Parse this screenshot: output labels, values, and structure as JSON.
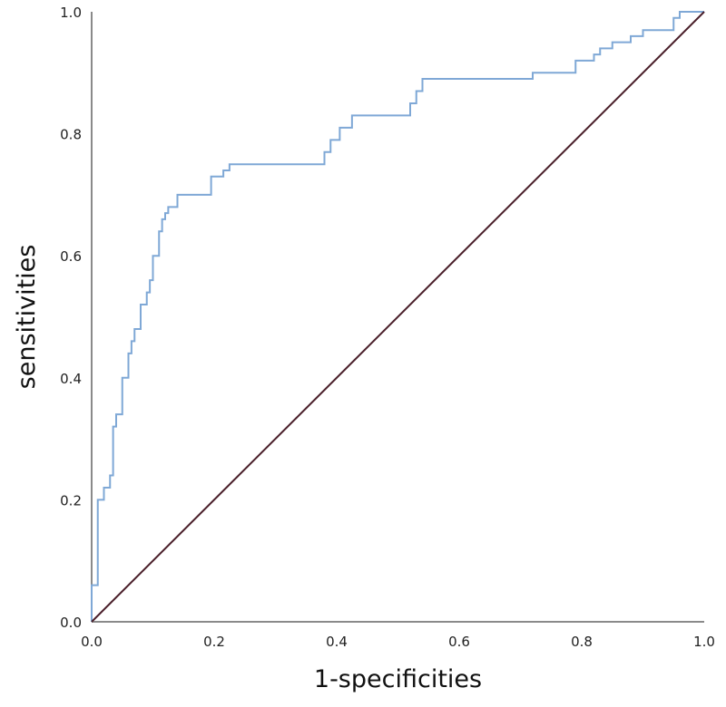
{
  "chart_data": {
    "type": "line",
    "title": "",
    "xlabel": "1-specificities",
    "ylabel": "sensitivities",
    "xlim": [
      0,
      1
    ],
    "ylim": [
      0,
      1
    ],
    "grid": false,
    "x_ticks": [
      "0.0",
      "0.2",
      "0.4",
      "0.6",
      "0.8",
      "1.0"
    ],
    "y_ticks": [
      "0.0",
      "0.2",
      "0.4",
      "0.6",
      "0.8",
      "1.0"
    ],
    "colors": {
      "roc": "#7fa8d6",
      "reference": "#4a1f2a",
      "axis": "#8a8a8a"
    },
    "series": [
      {
        "style": "step",
        "x": [
          0,
          0,
          0.01,
          0.01,
          0.02,
          0.02,
          0.03,
          0.03,
          0.035,
          0.035,
          0.04,
          0.04,
          0.05,
          0.05,
          0.06,
          0.06,
          0.065,
          0.065,
          0.07,
          0.07,
          0.08,
          0.08,
          0.09,
          0.09,
          0.095,
          0.095,
          0.1,
          0.1,
          0.11,
          0.11,
          0.115,
          0.115,
          0.12,
          0.12,
          0.125,
          0.125,
          0.14,
          0.14,
          0.195,
          0.195,
          0.215,
          0.215,
          0.225,
          0.225,
          0.38,
          0.38,
          0.39,
          0.39,
          0.405,
          0.405,
          0.425,
          0.425,
          0.52,
          0.52,
          0.53,
          0.53,
          0.54,
          0.54,
          0.72,
          0.72,
          0.79,
          0.79,
          0.82,
          0.82,
          0.83,
          0.83,
          0.85,
          0.85,
          0.88,
          0.88,
          0.9,
          0.9,
          0.95,
          0.95,
          0.96,
          0.96,
          1.0
        ],
        "y": [
          0,
          0.06,
          0.06,
          0.2,
          0.2,
          0.22,
          0.22,
          0.24,
          0.24,
          0.32,
          0.32,
          0.34,
          0.34,
          0.4,
          0.4,
          0.44,
          0.44,
          0.46,
          0.46,
          0.48,
          0.48,
          0.52,
          0.52,
          0.54,
          0.54,
          0.56,
          0.56,
          0.6,
          0.6,
          0.64,
          0.64,
          0.66,
          0.66,
          0.67,
          0.67,
          0.68,
          0.68,
          0.7,
          0.7,
          0.73,
          0.73,
          0.74,
          0.74,
          0.75,
          0.75,
          0.77,
          0.77,
          0.79,
          0.79,
          0.81,
          0.81,
          0.83,
          0.83,
          0.85,
          0.85,
          0.87,
          0.87,
          0.89,
          0.89,
          0.9,
          0.9,
          0.92,
          0.92,
          0.93,
          0.93,
          0.94,
          0.94,
          0.95,
          0.95,
          0.96,
          0.96,
          0.97,
          0.97,
          0.99,
          0.99,
          1.0,
          1.0
        ]
      },
      {
        "style": "reference",
        "x": [
          0,
          1
        ],
        "y": [
          0,
          1
        ]
      }
    ]
  }
}
